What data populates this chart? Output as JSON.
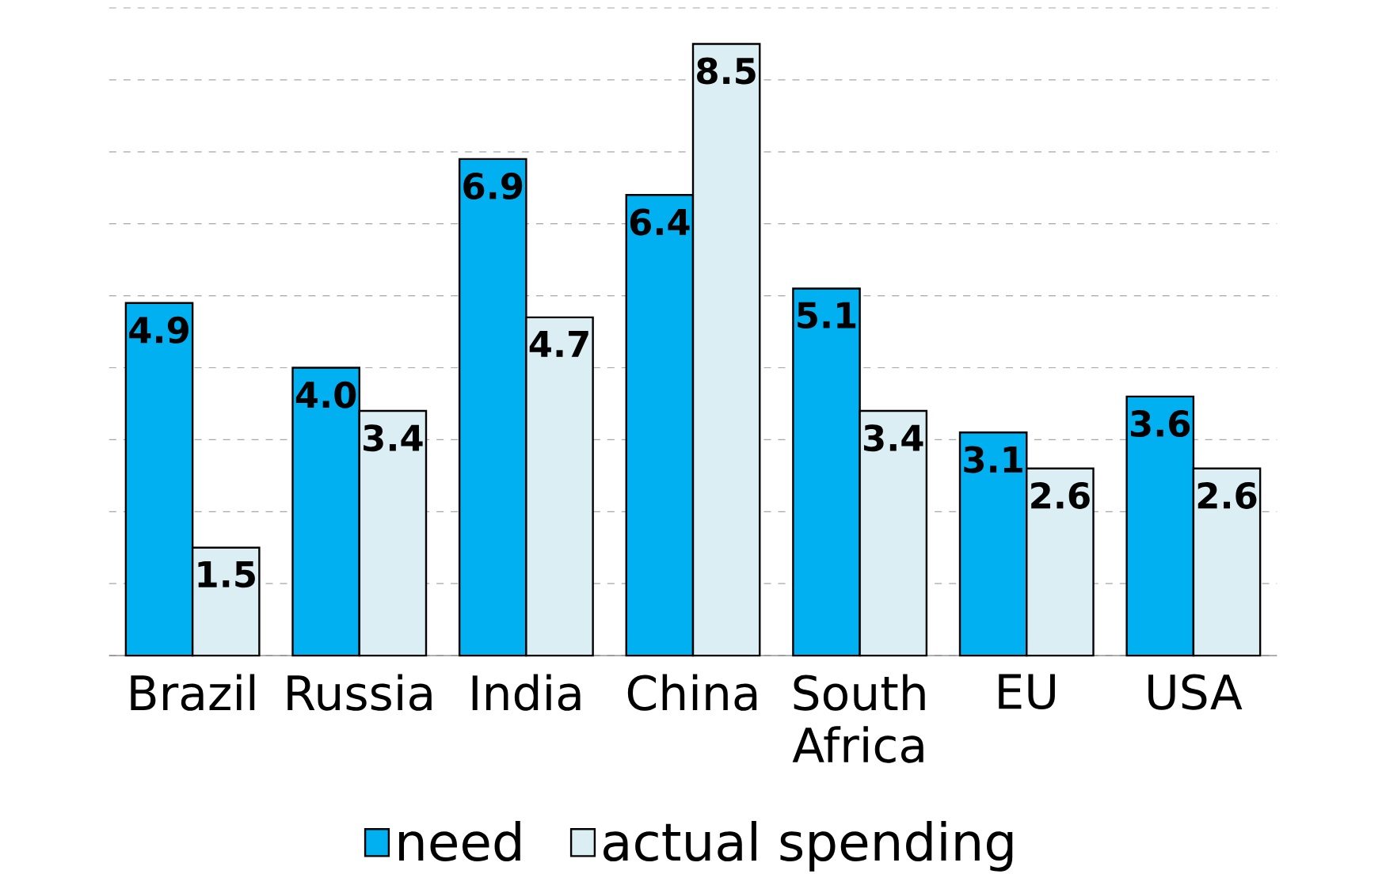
{
  "chart_data": {
    "type": "bar",
    "categories": [
      "Brazil",
      "Russia",
      "India",
      "China",
      "South Africa",
      "EU",
      "USA"
    ],
    "series": [
      {
        "name": "need",
        "color": "#00b0f0",
        "values": [
          4.9,
          4.0,
          6.9,
          6.4,
          5.1,
          3.1,
          3.6
        ],
        "value_labels": [
          "4.9",
          "4.0",
          "6.9",
          "6.4",
          "5.1",
          "3.1",
          "3.6"
        ]
      },
      {
        "name": "actual spending",
        "color": "#daeef3",
        "values": [
          1.5,
          3.4,
          4.7,
          8.5,
          3.4,
          2.6,
          2.6
        ],
        "value_labels": [
          "1.5",
          "3.4",
          "4.7",
          "8.5",
          "3.4",
          "2.6",
          "2.6"
        ]
      }
    ],
    "ylim": [
      0,
      9
    ],
    "yticks": [
      {
        "value": 0,
        "label": null
      },
      {
        "value": 1,
        "label": null
      },
      {
        "value": 2,
        "label": null
      },
      {
        "value": 3,
        "label": null
      },
      {
        "value": 4,
        "label": null
      },
      {
        "value": 5,
        "label": null
      },
      {
        "value": 6,
        "label": null
      },
      {
        "value": 7,
        "label": null
      },
      {
        "value": 8,
        "label": null
      },
      {
        "value": 9,
        "label": null
      }
    ],
    "tick_labels": "x",
    "grid": "y",
    "legend": "bottom"
  }
}
